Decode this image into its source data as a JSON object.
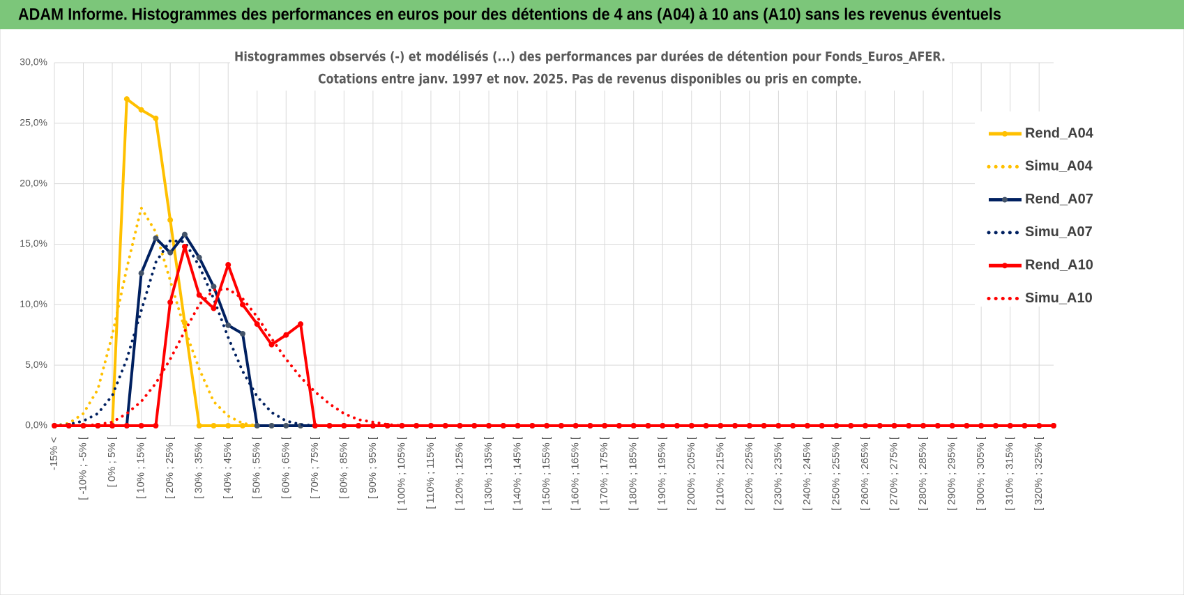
{
  "banner": "ADAM Informe. Histogrammes des performances en euros pour des détentions de 4 ans (A04) à 10 ans (A10) sans les revenus éventuels",
  "chart_data": {
    "type": "line",
    "title": "Histogrammes observés (-) et modélisés (...) des performances par durées de détention pour Fonds_Euros_AFER.",
    "subtitle": "Cotations entre janv. 1997 et nov. 2025. Pas de revenus disponibles ou pris en compte.",
    "categories": [
      "-15% <",
      null,
      "[ -10% ; -5% [",
      null,
      "[ 0% ; 5% [",
      null,
      "[ 10% ; 15% [",
      null,
      "[ 20% ; 25% [",
      null,
      "[ 30% ; 35% [",
      null,
      "[ 40% ; 45% [",
      null,
      "[ 50% ; 55% [",
      null,
      "[ 60% ; 65% [",
      null,
      "[ 70% ; 75% [",
      null,
      "[ 80% ; 85% [",
      null,
      "[ 90% ; 95% [",
      null,
      "[ 100% ; 105% [",
      null,
      "[ 110% ; 115% [",
      null,
      "[ 120% ; 125% [",
      null,
      "[ 130% ; 135% [",
      null,
      "[ 140% ; 145% [",
      null,
      "[ 150% ; 155% [",
      null,
      "[ 160% ; 165% [",
      null,
      "[ 170% ; 175% [",
      null,
      "[ 180% ; 185% [",
      null,
      "[ 190% ; 195% [",
      null,
      "[ 200% ; 205% [",
      null,
      "[ 210% ; 215% [",
      null,
      "[ 220% ; 225% [",
      null,
      "[ 230% ; 235% [",
      null,
      "[ 240% ; 245% [",
      null,
      "[ 250% ; 255% [",
      null,
      "[ 260% ; 265% [",
      null,
      "[ 270% ; 275% [",
      null,
      "[ 280% ; 285% [",
      null,
      "[ 290% ; 295% [",
      null,
      "[ 300% ; 305% [",
      null,
      "[ 310% ; 315% [",
      null,
      "[ 320% ; 325% [",
      null
    ],
    "series": [
      {
        "name": "Rend_A04",
        "color": "#ffc000",
        "style": "solid",
        "marker_color": "#ffc000",
        "values": [
          0,
          0,
          0,
          0,
          0,
          27.0,
          26.1,
          25.4,
          17.0,
          8.5,
          0,
          0,
          0,
          0,
          0,
          0,
          0,
          0,
          0,
          0,
          0,
          0,
          0,
          0,
          0,
          0,
          0,
          0,
          0,
          0,
          0,
          0,
          0,
          0,
          0,
          0,
          0,
          0,
          0,
          0,
          0,
          0,
          0,
          0,
          0,
          0,
          0,
          0,
          0,
          0,
          0,
          0,
          0,
          0,
          0,
          0,
          0,
          0,
          0,
          0,
          0,
          0,
          0,
          0,
          0,
          0,
          0,
          0,
          0,
          0
        ]
      },
      {
        "name": "Simu_A04",
        "color": "#ffc000",
        "style": "dotted",
        "values": [
          0,
          0.2,
          1,
          3,
          7.5,
          13,
          18,
          16,
          12,
          8,
          4.7,
          2,
          0.8,
          0.2,
          0,
          0,
          0,
          0,
          0,
          0,
          0,
          0,
          0,
          0,
          0,
          0,
          0,
          0,
          0,
          0,
          0,
          0,
          0,
          0,
          0,
          0,
          0,
          0,
          0,
          0,
          0,
          0,
          0,
          0,
          0,
          0,
          0,
          0,
          0,
          0,
          0,
          0,
          0,
          0,
          0,
          0,
          0,
          0,
          0,
          0,
          0,
          0,
          0,
          0,
          0,
          0,
          0,
          0,
          0,
          0
        ]
      },
      {
        "name": "Rend_A07",
        "color": "#002060",
        "style": "solid",
        "marker_color": "#44546a",
        "values": [
          0,
          0,
          0,
          0,
          0,
          0,
          12.6,
          15.5,
          14.3,
          15.8,
          13.9,
          11.5,
          8.3,
          7.6,
          0,
          0,
          0,
          0,
          0,
          0,
          0,
          0,
          0,
          0,
          0,
          0,
          0,
          0,
          0,
          0,
          0,
          0,
          0,
          0,
          0,
          0,
          0,
          0,
          0,
          0,
          0,
          0,
          0,
          0,
          0,
          0,
          0,
          0,
          0,
          0,
          0,
          0,
          0,
          0,
          0,
          0,
          0,
          0,
          0,
          0,
          0,
          0,
          0,
          0,
          0,
          0,
          0,
          0,
          0,
          0
        ]
      },
      {
        "name": "Simu_A07",
        "color": "#002060",
        "style": "dotted",
        "values": [
          0,
          0.1,
          0.4,
          1,
          2.5,
          5.5,
          9.5,
          13.5,
          15.3,
          15.2,
          13.2,
          10.5,
          7.3,
          4.5,
          2.4,
          1.1,
          0.4,
          0.1,
          0,
          0,
          0,
          0,
          0,
          0,
          0,
          0,
          0,
          0,
          0,
          0,
          0,
          0,
          0,
          0,
          0,
          0,
          0,
          0,
          0,
          0,
          0,
          0,
          0,
          0,
          0,
          0,
          0,
          0,
          0,
          0,
          0,
          0,
          0,
          0,
          0,
          0,
          0,
          0,
          0,
          0,
          0,
          0,
          0,
          0,
          0,
          0,
          0,
          0,
          0,
          0
        ]
      },
      {
        "name": "Rend_A10",
        "color": "#ff0000",
        "style": "solid",
        "marker_color": "#ff0000",
        "values": [
          0,
          0,
          0,
          0,
          0,
          0,
          0,
          0,
          10.2,
          14.8,
          10.8,
          9.7,
          13.3,
          10.0,
          8.4,
          6.7,
          7.5,
          8.4,
          0,
          0,
          0,
          0,
          0,
          0,
          0,
          0,
          0,
          0,
          0,
          0,
          0,
          0,
          0,
          0,
          0,
          0,
          0,
          0,
          0,
          0,
          0,
          0,
          0,
          0,
          0,
          0,
          0,
          0,
          0,
          0,
          0,
          0,
          0,
          0,
          0,
          0,
          0,
          0,
          0,
          0,
          0,
          0,
          0,
          0,
          0,
          0,
          0,
          0,
          0,
          0
        ]
      },
      {
        "name": "Simu_A10",
        "color": "#ff0000",
        "style": "dotted",
        "values": [
          0,
          0,
          0,
          0.1,
          0.3,
          1,
          2,
          3.5,
          5.5,
          7.8,
          10,
          11.2,
          11.3,
          10.5,
          9,
          7.2,
          5.5,
          4,
          2.8,
          1.8,
          1,
          0.5,
          0.3,
          0.1,
          0,
          0,
          0,
          0,
          0,
          0,
          0,
          0,
          0,
          0,
          0,
          0,
          0,
          0,
          0,
          0,
          0,
          0,
          0,
          0,
          0,
          0,
          0,
          0,
          0,
          0,
          0,
          0,
          0,
          0,
          0,
          0,
          0,
          0,
          0,
          0,
          0,
          0,
          0,
          0,
          0,
          0,
          0,
          0,
          0,
          0
        ]
      }
    ],
    "ylim": [
      0,
      30
    ],
    "yticks": [
      {
        "value": 0,
        "label": "0,0%"
      },
      {
        "value": 5,
        "label": "5,0%"
      },
      {
        "value": 10,
        "label": "10,0%"
      },
      {
        "value": 15,
        "label": "15,0%"
      },
      {
        "value": 20,
        "label": "20,0%"
      },
      {
        "value": 25,
        "label": "25,0%"
      },
      {
        "value": 30,
        "label": "30,0%"
      }
    ],
    "grid": true,
    "legend": "right"
  }
}
